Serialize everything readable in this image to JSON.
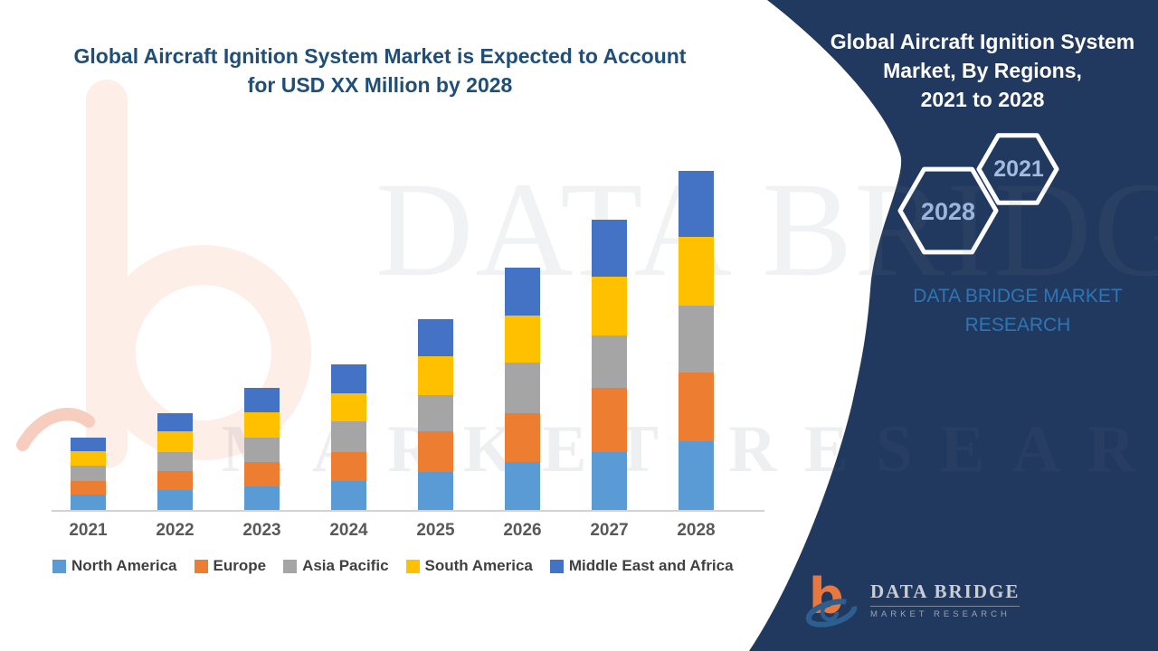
{
  "page": {
    "background": "#ffffff",
    "navy": "#22395f"
  },
  "main_title": {
    "line1": "Global Aircraft Ignition System Market is Expected to Account",
    "line2": "for USD XX Million by 2028"
  },
  "right_panel": {
    "title_line1": "Global Aircraft Ignition System",
    "title_line2": "Market, By Regions,",
    "title_line3": "2021 to 2028",
    "hexagon_back_label": "2021",
    "hexagon_front_label": "2028",
    "brand_line1": "DATA BRIDGE MARKET",
    "brand_line2": "RESEARCH",
    "text_color": "#ffffff",
    "brand_color": "#2E75B6"
  },
  "watermarks": {
    "big_text": "DATA BRIDGE",
    "lower_text": "MARKET RESEARCH",
    "logo_glyph": "b"
  },
  "footer_logo": {
    "name": "DATA BRIDGE",
    "subtitle": "MARKET RESEARCH",
    "orange": "#e9783f",
    "blue": "#2c5f8f"
  },
  "chart_data": {
    "type": "bar",
    "stacked": true,
    "title": "Global Aircraft Ignition System Market, By Regions, 2021 to 2028",
    "xlabel": "",
    "ylabel": "",
    "unit": "USD Million (values masked as XX in source)",
    "value_axis_visible": false,
    "grid": false,
    "legend_position": "bottom",
    "categories": [
      "2021",
      "2022",
      "2023",
      "2024",
      "2025",
      "2026",
      "2027",
      "2028"
    ],
    "series": [
      {
        "name": "North America",
        "color": "#5B9BD5",
        "values": [
          17,
          22,
          26,
          32,
          42,
          53,
          64,
          76
        ]
      },
      {
        "name": "Europe",
        "color": "#ED7D31",
        "values": [
          15,
          21,
          27,
          32,
          45,
          54,
          71,
          76
        ]
      },
      {
        "name": "Asia Pacific",
        "color": "#A5A5A5",
        "values": [
          17,
          21,
          27,
          34,
          40,
          56,
          58,
          74
        ]
      },
      {
        "name": "South America",
        "color": "#FFC000",
        "values": [
          16,
          23,
          28,
          31,
          43,
          52,
          65,
          76
        ]
      },
      {
        "name": "Middle East and Africa",
        "color": "#4472C4",
        "values": [
          15,
          20,
          27,
          32,
          41,
          53,
          63,
          73
        ]
      }
    ],
    "stack_totals": [
      80,
      107,
      135,
      161,
      211,
      268,
      321,
      375
    ]
  }
}
